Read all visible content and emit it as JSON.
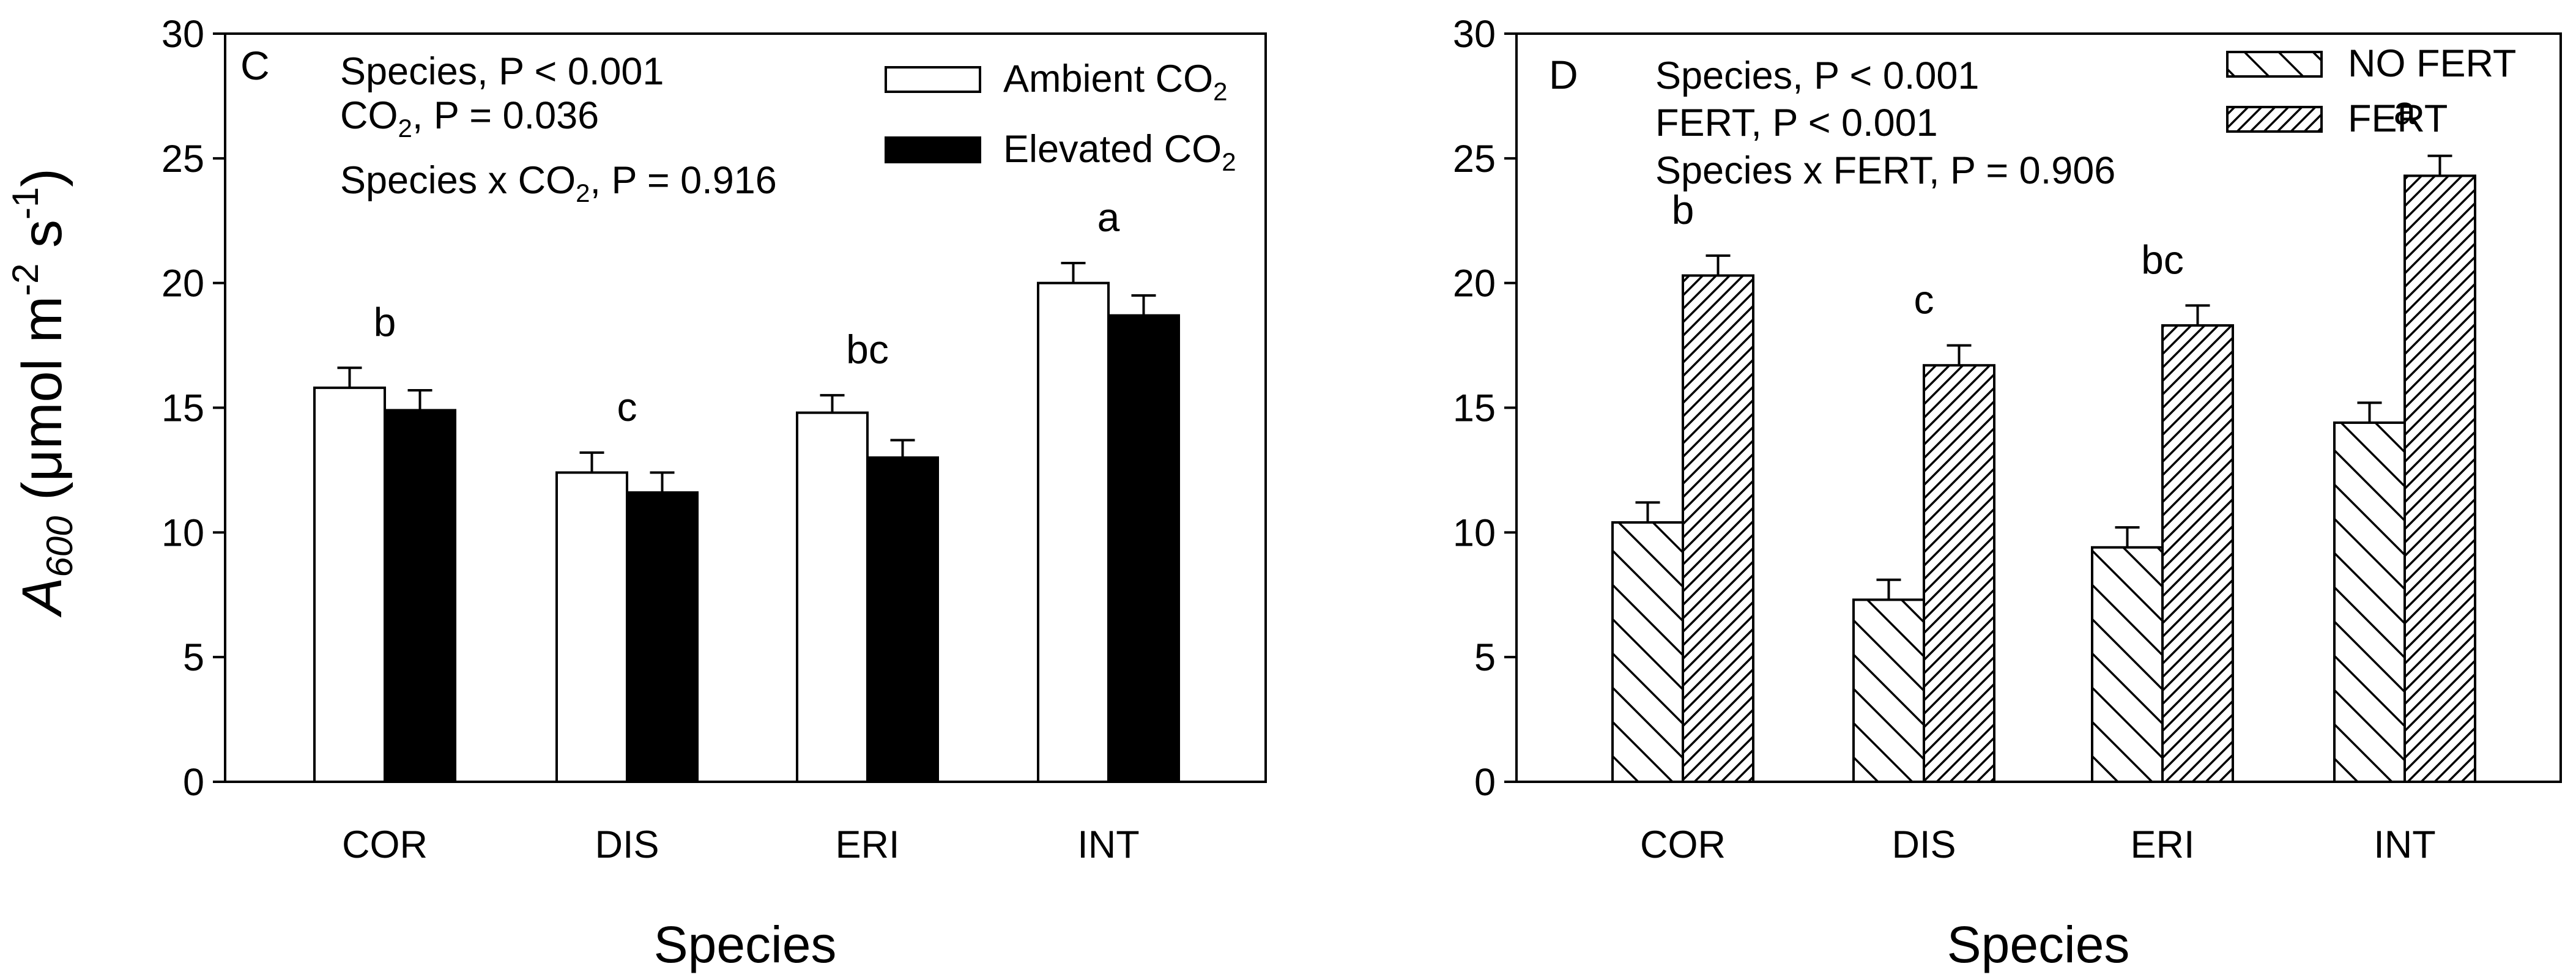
{
  "figure": {
    "ylabel": {
      "symbol": "A",
      "subscript": "600",
      "unit_open": " (μmol m",
      "sup1": "-2",
      "unit_mid": " s",
      "sup2": "-1",
      "unit_close": ")"
    }
  },
  "colors": {
    "bar_fill_white": "#ffffff",
    "bar_fill_black": "#000000",
    "axis": "#000000"
  },
  "chart_data": [
    {
      "panel": "C",
      "type": "bar",
      "title": "",
      "xlabel": "Species",
      "ylabel": "A600 (μmol m-2 s-1)",
      "ylim": [
        0,
        30
      ],
      "yticks": [
        "0",
        "5",
        "10",
        "15",
        "20",
        "25",
        "30"
      ],
      "categories": [
        "COR",
        "DIS",
        "ERI",
        "INT"
      ],
      "series": [
        {
          "name": "Ambient CO2",
          "label_main": "Ambient CO",
          "label_sub": "2",
          "fill": "white",
          "values": [
            15.8,
            12.4,
            14.8,
            20.0
          ],
          "errors": [
            0.8,
            0.8,
            0.7,
            0.8
          ]
        },
        {
          "name": "Elevated CO2",
          "label_main": "Elevated CO",
          "label_sub": "2",
          "fill": "black",
          "values": [
            14.9,
            11.6,
            13.0,
            18.7
          ],
          "errors": [
            0.8,
            0.8,
            0.7,
            0.8
          ]
        }
      ],
      "letters": [
        "b",
        "c",
        "bc",
        "a"
      ],
      "stats": [
        {
          "parts": [
            "Species, P < 0.001"
          ]
        },
        {
          "parts": [
            "CO",
            "2",
            ", P = 0.036"
          ]
        },
        {
          "parts": [
            "Species x CO",
            "2",
            ", P = 0.916"
          ]
        }
      ],
      "legend": "top-right"
    },
    {
      "panel": "D",
      "type": "bar",
      "title": "",
      "xlabel": "Species",
      "ylabel": "",
      "ylim": [
        0,
        30
      ],
      "yticks": [
        "0",
        "5",
        "10",
        "15",
        "20",
        "25",
        "30"
      ],
      "categories": [
        "COR",
        "DIS",
        "ERI",
        "INT"
      ],
      "series": [
        {
          "name": "NO FERT",
          "label_main": "NO FERT",
          "label_sub": "",
          "fill": "hatch-back",
          "values": [
            10.4,
            7.3,
            9.4,
            14.4
          ],
          "errors": [
            0.8,
            0.8,
            0.8,
            0.8
          ]
        },
        {
          "name": "FERT",
          "label_main": "FERT",
          "label_sub": "",
          "fill": "hatch-fwd",
          "values": [
            20.3,
            16.7,
            18.3,
            24.3
          ],
          "errors": [
            0.8,
            0.8,
            0.8,
            0.8
          ]
        }
      ],
      "letters": [
        "b",
        "c",
        "bc",
        "a"
      ],
      "stats": [
        {
          "parts": [
            "Species, P < 0.001"
          ]
        },
        {
          "parts": [
            "FERT, P < 0.001"
          ]
        },
        {
          "parts": [
            "Species x FERT, P = 0.906"
          ]
        }
      ],
      "legend": "top-right"
    }
  ]
}
